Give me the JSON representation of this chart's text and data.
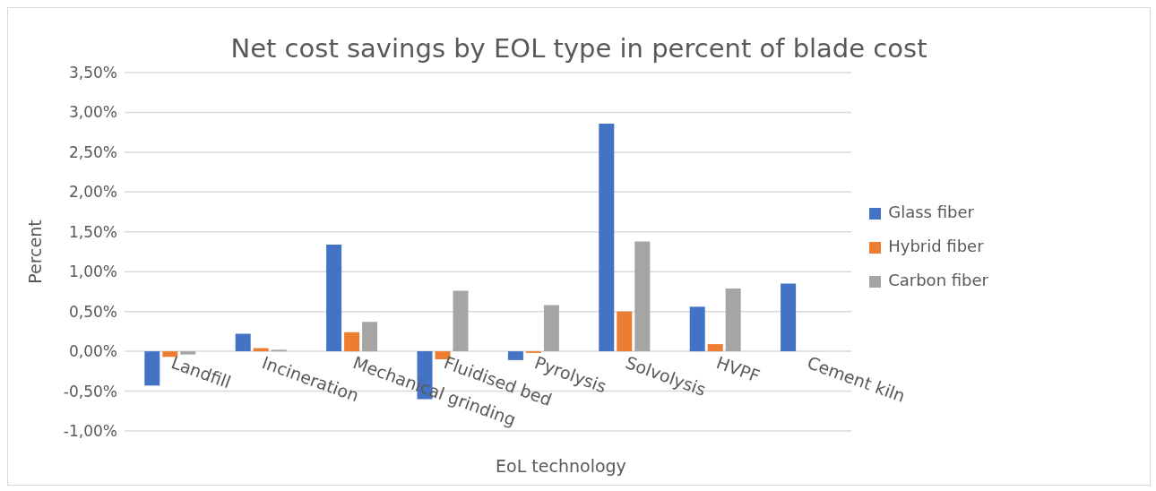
{
  "chart_data": {
    "type": "bar",
    "title": "Net cost savings by EOL type in percent of blade cost",
    "xlabel": "EoL technology",
    "ylabel": "Percent",
    "categories": [
      "Landfill",
      "Incineration",
      "Mechanical grinding",
      "Fluidised bed",
      "Pyrolysis",
      "Solvolysis",
      "HVPF",
      "Cement kiln"
    ],
    "series": [
      {
        "name": "Glass fiber",
        "color": "#4472c4",
        "values": [
          -0.43,
          0.22,
          1.34,
          -0.6,
          -0.11,
          2.86,
          0.56,
          0.85
        ]
      },
      {
        "name": "Hybrid fiber",
        "color": "#ed7d31",
        "values": [
          -0.07,
          0.04,
          0.24,
          -0.1,
          -0.02,
          0.5,
          0.09,
          null
        ]
      },
      {
        "name": "Carbon fiber",
        "color": "#a5a5a5",
        "values": [
          -0.04,
          0.02,
          0.37,
          0.76,
          0.58,
          1.38,
          0.79,
          null
        ]
      }
    ],
    "ylim": [
      -1,
      3.5
    ],
    "yticks": [
      {
        "value": -1,
        "label": "-1,00%"
      },
      {
        "value": -0.5,
        "label": "-0,50%"
      },
      {
        "value": 0,
        "label": "0,00%"
      },
      {
        "value": 0.5,
        "label": "0,50%"
      },
      {
        "value": 1,
        "label": "1,00%"
      },
      {
        "value": 1.5,
        "label": "1,50%"
      },
      {
        "value": 2,
        "label": "2,00%"
      },
      {
        "value": 2.5,
        "label": "2,50%"
      },
      {
        "value": 3,
        "label": "3,00%"
      },
      {
        "value": 3.5,
        "label": "3,50%"
      }
    ],
    "grid": "y",
    "legend": "right"
  }
}
